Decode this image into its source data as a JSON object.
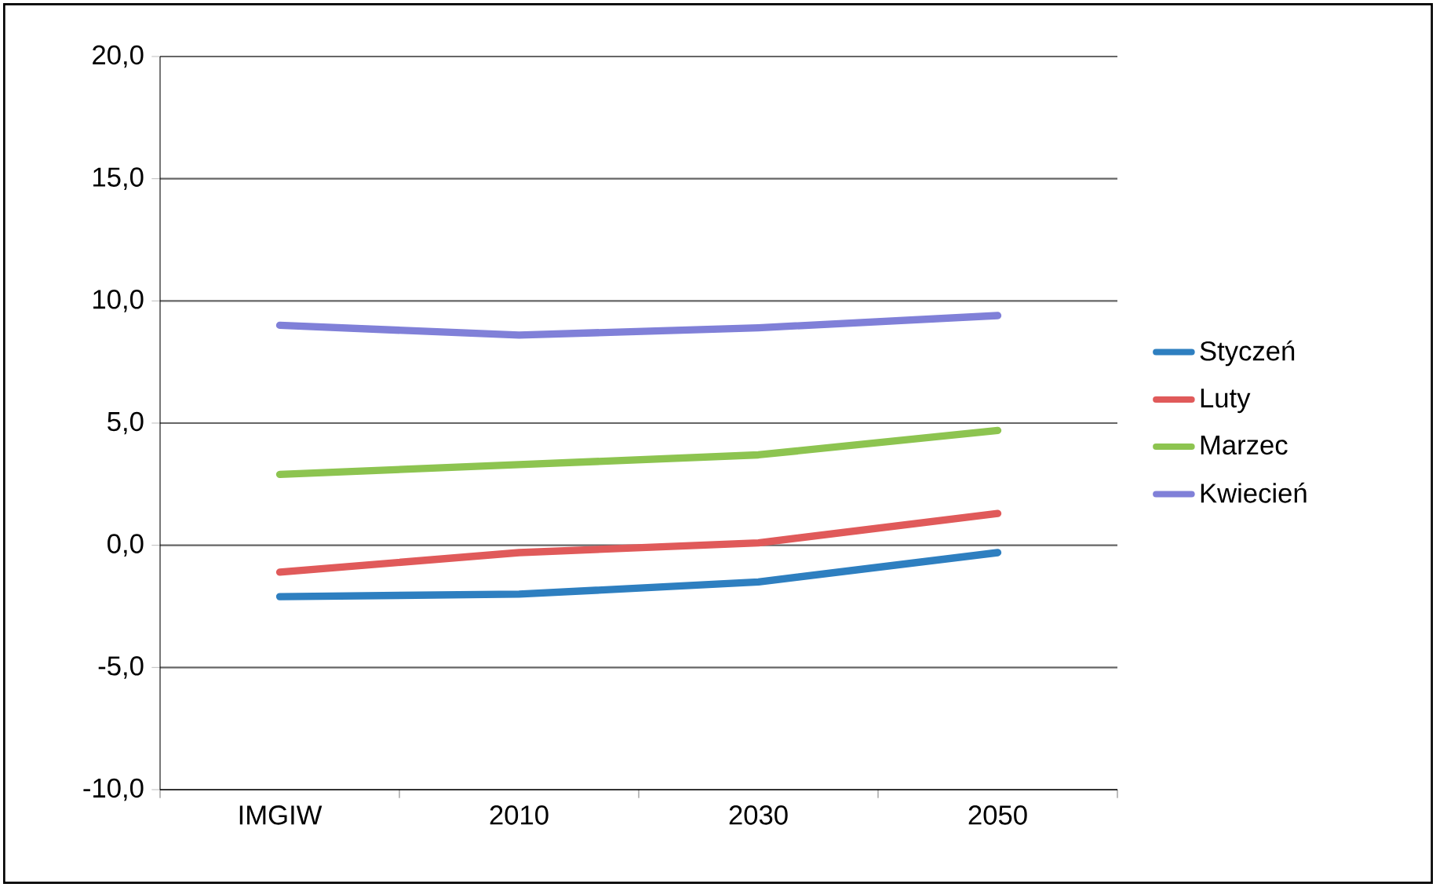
{
  "chart_data": {
    "type": "line",
    "categories": [
      "IMGIW",
      "2010",
      "2030",
      "2050"
    ],
    "series": [
      {
        "name": "Styczeń",
        "color": "#2e7fc0",
        "values": [
          -2.1,
          -2.0,
          -1.5,
          -0.3
        ]
      },
      {
        "name": "Luty",
        "color": "#e05a5a",
        "values": [
          -1.1,
          -0.3,
          0.1,
          1.3
        ]
      },
      {
        "name": "Marzec",
        "color": "#8dc450",
        "values": [
          2.9,
          3.3,
          3.7,
          4.7
        ]
      },
      {
        "name": "Kwiecień",
        "color": "#8080d8",
        "values": [
          9.0,
          8.6,
          8.9,
          9.4
        ]
      }
    ],
    "ylim": [
      -10,
      20
    ],
    "yticks": [
      {
        "value": -10,
        "label": "-10,0"
      },
      {
        "value": -5,
        "label": "-5,0"
      },
      {
        "value": 0,
        "label": "0,0"
      },
      {
        "value": 5,
        "label": "5,0"
      },
      {
        "value": 10,
        "label": "10,0"
      },
      {
        "value": 15,
        "label": "15,0"
      },
      {
        "value": 20,
        "label": "20,0"
      }
    ],
    "grid": "y",
    "legend": "right",
    "marker": "none",
    "line_style": "solid"
  }
}
